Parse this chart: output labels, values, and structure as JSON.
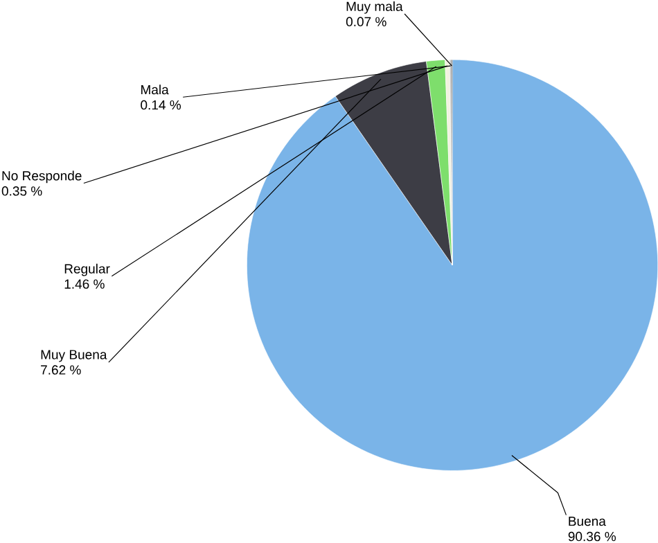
{
  "chart_data": {
    "type": "pie",
    "categories": [
      "Buena",
      "Muy Buena",
      "Regular",
      "No Responde",
      "Mala",
      "Muy mala"
    ],
    "values": [
      90.36,
      7.62,
      1.46,
      0.35,
      0.14,
      0.07
    ],
    "value_labels": [
      "90.36 %",
      "7.62 %",
      "1.46 %",
      "0.35 %",
      "0.14 %",
      "0.07 %"
    ],
    "colors": [
      "#7ab4e8",
      "#3d3d45",
      "#7ede6c",
      "#f2f2e0",
      "#bdbdbd",
      "#2b2b2b"
    ],
    "legend": false
  }
}
